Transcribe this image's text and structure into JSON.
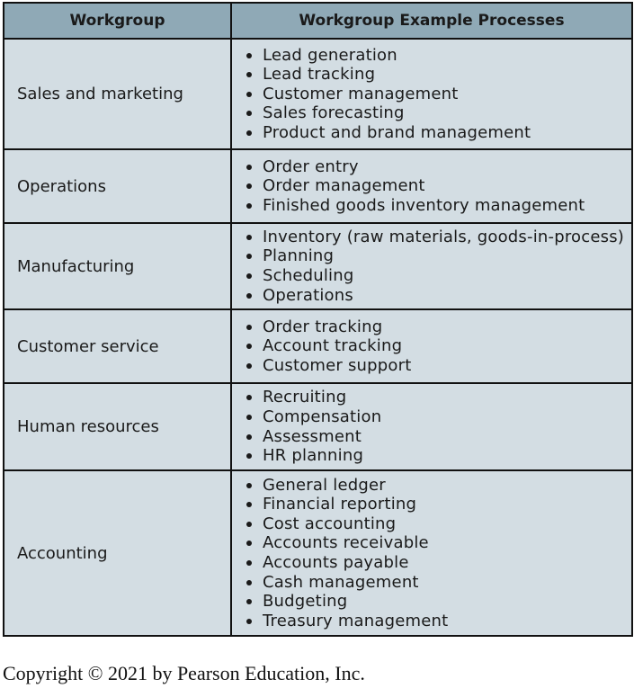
{
  "table": {
    "headers": [
      "Workgroup",
      "Workgroup Example Processes"
    ],
    "rows": [
      {
        "workgroup": "Sales and marketing",
        "processes": [
          "Lead generation",
          "Lead tracking",
          "Customer management",
          "Sales forecasting",
          "Product and brand management"
        ]
      },
      {
        "workgroup": "Operations",
        "processes": [
          "Order entry",
          "Order management",
          "Finished goods inventory management"
        ]
      },
      {
        "workgroup": "Manufacturing",
        "processes": [
          "Inventory (raw materials, goods-in-process)",
          "Planning",
          "Scheduling",
          "Operations"
        ]
      },
      {
        "workgroup": "Customer service",
        "processes": [
          "Order tracking",
          "Account tracking",
          "Customer support"
        ]
      },
      {
        "workgroup": "Human resources",
        "processes": [
          "Recruiting",
          "Compensation",
          "Assessment",
          "HR planning"
        ]
      },
      {
        "workgroup": "Accounting",
        "processes": [
          "General ledger",
          "Financial reporting",
          "Cost accounting",
          "Accounts receivable",
          "Accounts payable",
          "Cash management",
          "Budgeting",
          "Treasury management"
        ]
      }
    ]
  },
  "copyright": "Copyright © 2021 by Pearson Education, Inc."
}
